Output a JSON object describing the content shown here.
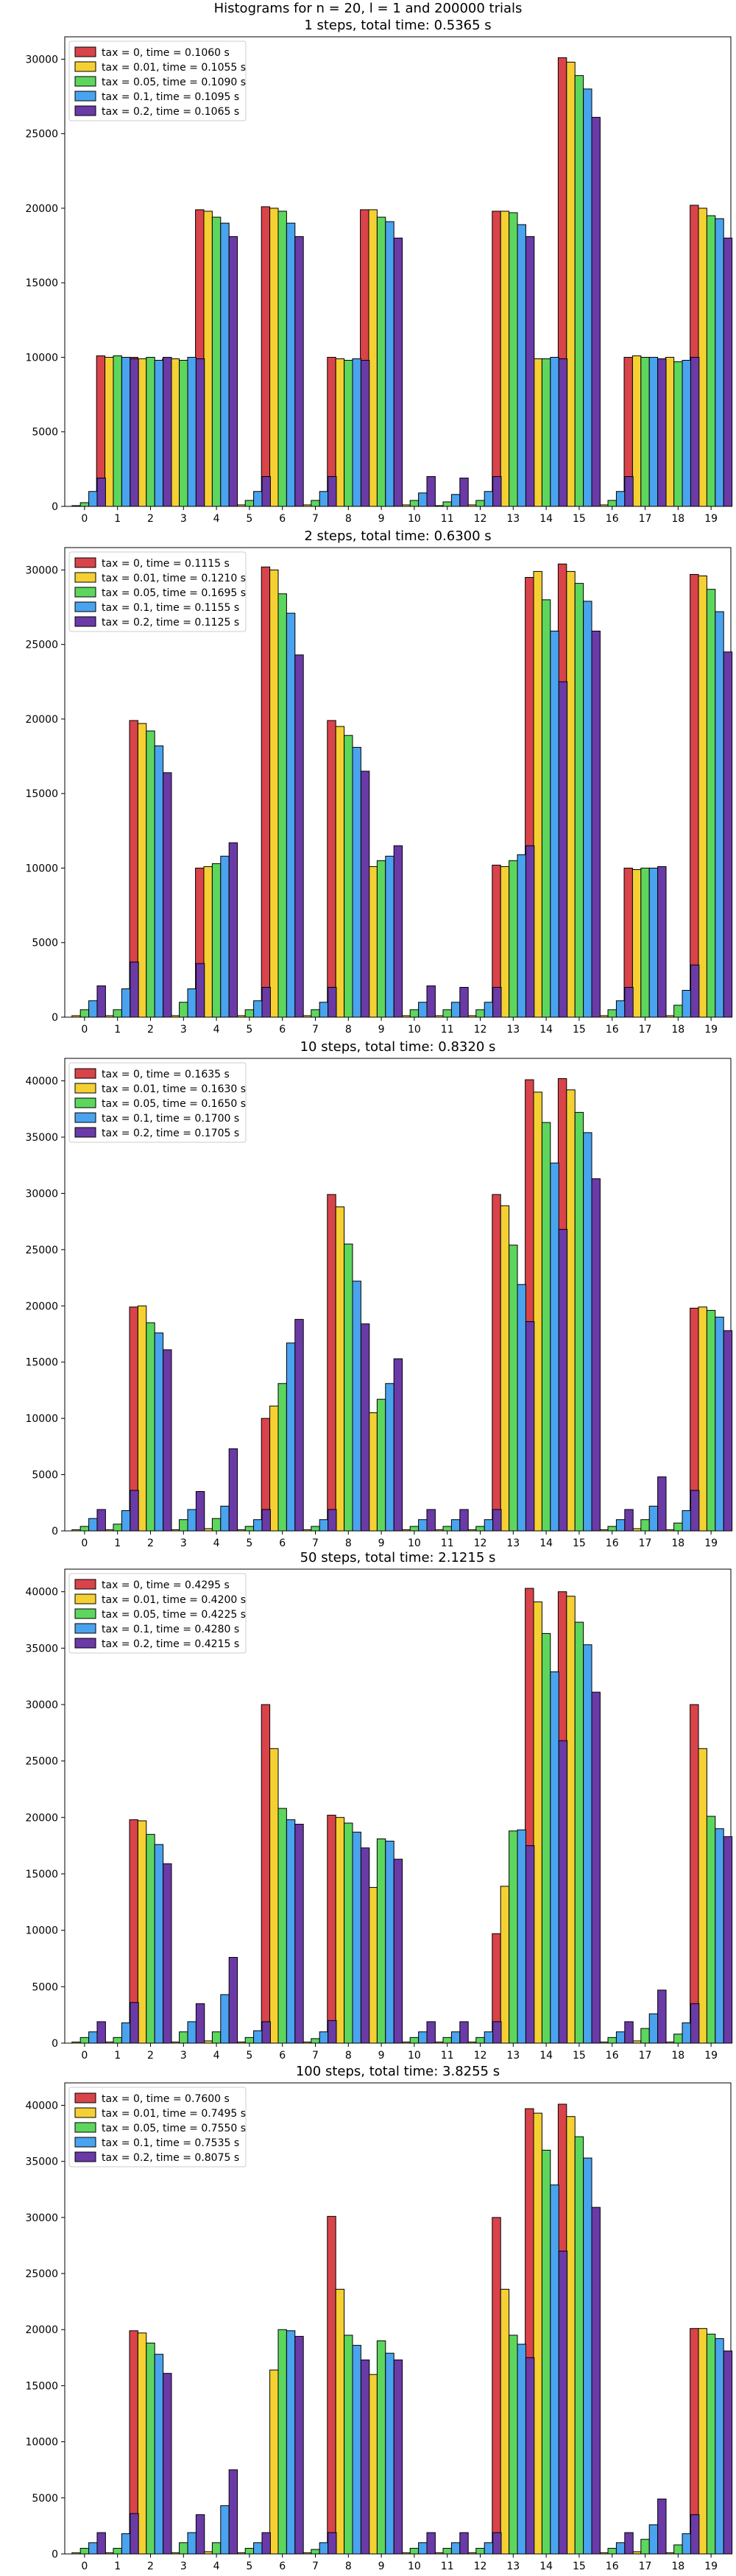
{
  "figure": {
    "suptitle": "Histograms for n = 20, l = 1 and 200000 trials"
  },
  "colors": {
    "tax_0": "#d9434a",
    "tax_0.01": "#f5d033",
    "tax_0.05": "#5dd65d",
    "tax_0.1": "#4aa3ee",
    "tax_0.2": "#6a3aa6",
    "bar_edge": "#000000"
  },
  "chart_data": [
    {
      "type": "bar",
      "title": "1 steps, total time: 0.5365 s",
      "xlabel": "",
      "ylabel": "",
      "categories": [
        "0",
        "1",
        "2",
        "3",
        "4",
        "5",
        "6",
        "7",
        "8",
        "9",
        "10",
        "11",
        "12",
        "13",
        "14",
        "15",
        "16",
        "17",
        "18",
        "19"
      ],
      "ylim": [
        0,
        31500
      ],
      "yticks": [
        0,
        5000,
        10000,
        15000,
        20000,
        25000,
        30000
      ],
      "grid": false,
      "legend_position": "top-left",
      "series": [
        {
          "name": "tax = 0, time = 0.1060 s",
          "color_key": "tax_0",
          "values": [
            0,
            10100,
            10000,
            9900,
            19900,
            0,
            20100,
            0,
            10000,
            19900,
            0,
            0,
            0,
            19800,
            9800,
            30100,
            0,
            10000,
            9900,
            20200
          ]
        },
        {
          "name": "tax = 0.01, time = 0.1055 s",
          "color_key": "tax_0.01",
          "values": [
            50,
            10000,
            9900,
            9900,
            19800,
            100,
            20000,
            100,
            9900,
            19900,
            100,
            50,
            100,
            19800,
            9900,
            29800,
            100,
            10100,
            10000,
            20000
          ]
        },
        {
          "name": "tax = 0.05, time = 0.1090 s",
          "color_key": "tax_0.05",
          "values": [
            250,
            10100,
            10000,
            9800,
            19400,
            400,
            19800,
            400,
            9800,
            19400,
            400,
            300,
            400,
            19700,
            9900,
            28900,
            400,
            10000,
            9700,
            19500
          ]
        },
        {
          "name": "tax = 0.1, time = 0.1095 s",
          "color_key": "tax_0.1",
          "values": [
            1000,
            10000,
            9800,
            10000,
            19000,
            1000,
            19000,
            1000,
            9900,
            19100,
            900,
            800,
            1000,
            18900,
            10000,
            28000,
            1000,
            10000,
            9800,
            19300
          ]
        },
        {
          "name": "tax = 0.2, time = 0.1065 s",
          "color_key": "tax_0.2",
          "values": [
            1900,
            9900,
            10000,
            9900,
            18100,
            2000,
            18100,
            2000,
            9800,
            18000,
            2000,
            1900,
            2000,
            18100,
            9900,
            26100,
            2000,
            9900,
            10000,
            18000
          ]
        }
      ]
    },
    {
      "type": "bar",
      "title": "2 steps, total time: 0.6300 s",
      "xlabel": "",
      "ylabel": "",
      "categories": [
        "0",
        "1",
        "2",
        "3",
        "4",
        "5",
        "6",
        "7",
        "8",
        "9",
        "10",
        "11",
        "12",
        "13",
        "14",
        "15",
        "16",
        "17",
        "18",
        "19"
      ],
      "ylim": [
        0,
        31500
      ],
      "yticks": [
        0,
        5000,
        10000,
        15000,
        20000,
        25000,
        30000
      ],
      "grid": false,
      "legend_position": "top-left",
      "series": [
        {
          "name": "tax = 0, time = 0.1115 s",
          "color_key": "tax_0",
          "values": [
            0,
            0,
            19900,
            0,
            10000,
            0,
            30200,
            0,
            19900,
            10000,
            0,
            0,
            0,
            10200,
            29500,
            30400,
            0,
            10000,
            0,
            29700
          ]
        },
        {
          "name": "tax = 0.01, time = 0.1210 s",
          "color_key": "tax_0.01",
          "values": [
            100,
            100,
            19700,
            100,
            10100,
            100,
            30000,
            100,
            19500,
            10100,
            100,
            100,
            100,
            10100,
            29900,
            29900,
            100,
            9900,
            100,
            29600
          ]
        },
        {
          "name": "tax = 0.05, time = 0.1695 s",
          "color_key": "tax_0.05",
          "values": [
            500,
            500,
            19200,
            1000,
            10300,
            500,
            28400,
            500,
            18900,
            10500,
            500,
            500,
            500,
            10500,
            28000,
            29100,
            500,
            10000,
            800,
            28700
          ]
        },
        {
          "name": "tax = 0.1, time = 0.1155 s",
          "color_key": "tax_0.1",
          "values": [
            1100,
            1900,
            18200,
            1900,
            10800,
            1100,
            27100,
            1000,
            18100,
            10800,
            1000,
            1000,
            1000,
            10900,
            25900,
            27900,
            1100,
            10000,
            1800,
            27200
          ]
        },
        {
          "name": "tax = 0.2, time = 0.1125 s",
          "color_key": "tax_0.2",
          "values": [
            2100,
            3700,
            16400,
            3600,
            11700,
            2000,
            24300,
            2000,
            16500,
            11500,
            2100,
            2000,
            2000,
            11500,
            22500,
            25900,
            2000,
            10100,
            3500,
            24500
          ]
        }
      ]
    },
    {
      "type": "bar",
      "title": "10 steps, total time: 0.8320 s",
      "xlabel": "",
      "ylabel": "",
      "categories": [
        "0",
        "1",
        "2",
        "3",
        "4",
        "5",
        "6",
        "7",
        "8",
        "9",
        "10",
        "11",
        "12",
        "13",
        "14",
        "15",
        "16",
        "17",
        "18",
        "19"
      ],
      "ylim": [
        0,
        42000
      ],
      "yticks": [
        0,
        5000,
        10000,
        15000,
        20000,
        25000,
        30000,
        35000,
        40000
      ],
      "grid": false,
      "legend_position": "top-left",
      "series": [
        {
          "name": "tax = 0, time = 0.1635 s",
          "color_key": "tax_0",
          "values": [
            0,
            0,
            19900,
            0,
            0,
            0,
            10000,
            0,
            29900,
            10000,
            0,
            0,
            0,
            29900,
            40100,
            40200,
            0,
            0,
            0,
            19800
          ]
        },
        {
          "name": "tax = 0.01, time = 0.1630 s",
          "color_key": "tax_0.01",
          "values": [
            100,
            100,
            20000,
            100,
            200,
            100,
            11100,
            100,
            28800,
            10500,
            100,
            100,
            100,
            28900,
            39000,
            39200,
            100,
            200,
            100,
            19900
          ]
        },
        {
          "name": "tax = 0.05, time = 0.1650 s",
          "color_key": "tax_0.05",
          "values": [
            400,
            600,
            18500,
            1000,
            1100,
            400,
            13100,
            400,
            25500,
            11700,
            400,
            400,
            400,
            25400,
            36300,
            37200,
            400,
            1000,
            700,
            19600
          ]
        },
        {
          "name": "tax = 0.1, time = 0.1700 s",
          "color_key": "tax_0.1",
          "values": [
            1100,
            1800,
            17600,
            1900,
            2200,
            1000,
            16700,
            1000,
            22200,
            13100,
            1000,
            1000,
            1000,
            21900,
            32700,
            35400,
            1000,
            2200,
            1800,
            19000
          ]
        },
        {
          "name": "tax = 0.2, time = 0.1705 s",
          "color_key": "tax_0.2",
          "values": [
            1900,
            3600,
            16100,
            3500,
            7300,
            1900,
            18800,
            1900,
            18400,
            15300,
            1900,
            1900,
            1900,
            18600,
            26800,
            31300,
            1900,
            4800,
            3600,
            17800
          ]
        }
      ]
    },
    {
      "type": "bar",
      "title": "50 steps, total time: 2.1215 s",
      "xlabel": "",
      "ylabel": "",
      "categories": [
        "0",
        "1",
        "2",
        "3",
        "4",
        "5",
        "6",
        "7",
        "8",
        "9",
        "10",
        "11",
        "12",
        "13",
        "14",
        "15",
        "16",
        "17",
        "18",
        "19"
      ],
      "ylim": [
        0,
        42000
      ],
      "yticks": [
        0,
        5000,
        10000,
        15000,
        20000,
        25000,
        30000,
        35000,
        40000
      ],
      "grid": false,
      "legend_position": "top-left",
      "series": [
        {
          "name": "tax = 0, time = 0.4295 s",
          "color_key": "tax_0",
          "values": [
            0,
            0,
            19800,
            0,
            0,
            0,
            30000,
            0,
            20200,
            10100,
            0,
            0,
            0,
            9700,
            40300,
            40000,
            0,
            0,
            0,
            30000
          ]
        },
        {
          "name": "tax = 0.01, time = 0.4200 s",
          "color_key": "tax_0.01",
          "values": [
            100,
            100,
            19700,
            100,
            200,
            100,
            26100,
            100,
            20000,
            13800,
            100,
            100,
            100,
            13900,
            39100,
            39600,
            100,
            200,
            100,
            26100
          ]
        },
        {
          "name": "tax = 0.05, time = 0.4225 s",
          "color_key": "tax_0.05",
          "values": [
            500,
            500,
            18500,
            1000,
            1000,
            500,
            20800,
            400,
            19500,
            18100,
            500,
            500,
            500,
            18800,
            36300,
            37300,
            500,
            1300,
            800,
            20100
          ]
        },
        {
          "name": "tax = 0.1, time = 0.4280 s",
          "color_key": "tax_0.1",
          "values": [
            1000,
            1800,
            17600,
            1900,
            4300,
            1100,
            19800,
            1000,
            18700,
            17900,
            1000,
            1000,
            1000,
            18900,
            32900,
            35300,
            1000,
            2600,
            1800,
            19000
          ]
        },
        {
          "name": "tax = 0.2, time = 0.4215 s",
          "color_key": "tax_0.2",
          "values": [
            1900,
            3600,
            15900,
            3500,
            7600,
            1900,
            19400,
            2000,
            17300,
            16300,
            1900,
            1900,
            1900,
            17500,
            26800,
            31100,
            1900,
            4700,
            3500,
            18300
          ]
        }
      ]
    },
    {
      "type": "bar",
      "title": "100 steps, total time: 3.8255 s",
      "xlabel": "",
      "ylabel": "",
      "categories": [
        "0",
        "1",
        "2",
        "3",
        "4",
        "5",
        "6",
        "7",
        "8",
        "9",
        "10",
        "11",
        "12",
        "13",
        "14",
        "15",
        "16",
        "17",
        "18",
        "19"
      ],
      "ylim": [
        0,
        42000
      ],
      "yticks": [
        0,
        5000,
        10000,
        15000,
        20000,
        25000,
        30000,
        35000,
        40000
      ],
      "grid": false,
      "legend_position": "top-left",
      "series": [
        {
          "name": "tax = 0, time = 0.7600 s",
          "color_key": "tax_0",
          "values": [
            0,
            0,
            19900,
            0,
            0,
            0,
            0,
            0,
            30100,
            0,
            0,
            0,
            0,
            30000,
            39700,
            40100,
            0,
            0,
            0,
            20100
          ]
        },
        {
          "name": "tax = 0.01, time = 0.7495 s",
          "color_key": "tax_0.01",
          "values": [
            100,
            100,
            19700,
            100,
            200,
            100,
            16400,
            100,
            23600,
            16000,
            100,
            100,
            100,
            23600,
            39300,
            39000,
            100,
            200,
            100,
            20100
          ]
        },
        {
          "name": "tax = 0.05, time = 0.7550 s",
          "color_key": "tax_0.05",
          "values": [
            500,
            500,
            18800,
            1000,
            1000,
            500,
            20000,
            400,
            19500,
            19000,
            500,
            500,
            500,
            19500,
            36000,
            37200,
            500,
            1300,
            800,
            19600
          ]
        },
        {
          "name": "tax = 0.1, time = 0.7535 s",
          "color_key": "tax_0.1",
          "values": [
            1000,
            1800,
            17800,
            1900,
            4300,
            1000,
            19900,
            1000,
            18600,
            17900,
            1000,
            1000,
            1000,
            18700,
            32900,
            35300,
            1000,
            2600,
            1800,
            19200
          ]
        },
        {
          "name": "tax = 0.2, time = 0.8075 s",
          "color_key": "tax_0.2",
          "values": [
            1900,
            3600,
            16100,
            3500,
            7500,
            1900,
            19400,
            1900,
            17300,
            17300,
            1900,
            1900,
            1900,
            17500,
            27000,
            30900,
            1900,
            4900,
            3500,
            18100
          ]
        }
      ]
    }
  ]
}
